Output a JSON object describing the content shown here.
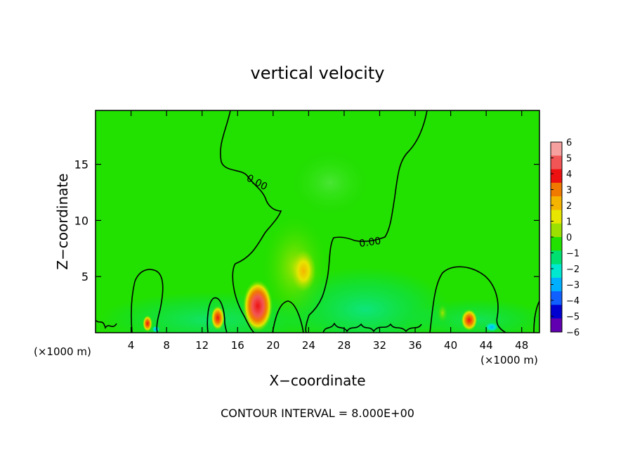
{
  "chart_data": {
    "type": "heatmap",
    "title": "vertical velocity",
    "xlabel": "X−coordinate",
    "ylabel": "Z−coordinate",
    "x_unit_left": "(×1000 m)",
    "x_unit_right": "(×1000 m)",
    "footer": "CONTOUR INTERVAL = 8.000E+00",
    "xlim": [
      0,
      50
    ],
    "ylim": [
      0,
      19.8
    ],
    "x_ticks": [
      4,
      8,
      12,
      16,
      20,
      24,
      28,
      32,
      36,
      40,
      44,
      48
    ],
    "y_ticks": [
      5,
      10,
      15
    ],
    "colorbar": {
      "range": [
        -6,
        6
      ],
      "labels": [
        "6",
        "5",
        "4",
        "3",
        "2",
        "1",
        "0",
        "−1",
        "−2",
        "−3",
        "−4",
        "−5",
        "−6"
      ],
      "colors": [
        "#f7a0a0",
        "#f25555",
        "#ee1111",
        "#f07a00",
        "#f5b400",
        "#e6e600",
        "#9be000",
        "#22e000",
        "#00e070",
        "#00e8d0",
        "#00b0ff",
        "#1060ff",
        "#0000d0",
        "#6000b0"
      ]
    },
    "contour_labels": [
      "0.00",
      "0.00"
    ],
    "features": [
      {
        "x": 18.3,
        "z": 2.5,
        "w": 5.5
      },
      {
        "x": 22.5,
        "z": 5.5,
        "w": 2.0
      },
      {
        "x": 13.7,
        "z": 1.3,
        "w": 3.5
      },
      {
        "x": 6.2,
        "z": 0.9,
        "w": 2.5
      },
      {
        "x": 42.2,
        "z": 1.2,
        "w": 3.5
      },
      {
        "x": 39.0,
        "z": 1.8,
        "w": 1.0
      },
      {
        "x": 31.0,
        "z": 3.0,
        "w": -2.0
      },
      {
        "x": 44.5,
        "z": 0.4,
        "w": -2.5
      },
      {
        "x": 6.8,
        "z": 0.3,
        "w": -3.0
      }
    ]
  }
}
